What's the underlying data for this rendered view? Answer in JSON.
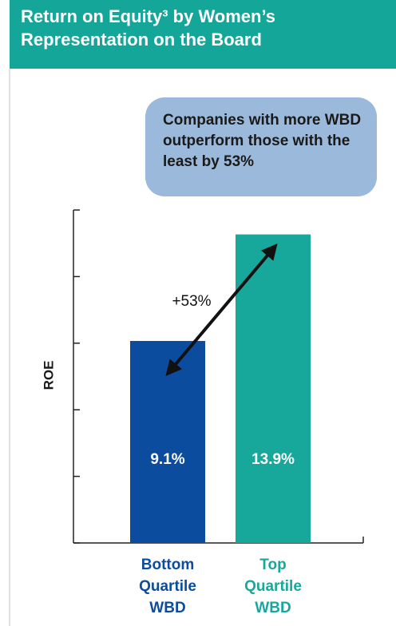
{
  "chart_data": {
    "type": "bar",
    "title": "Return on Equity³ by Women’s Representation on the Board",
    "annotation": "Companies with more WBD outperform those with the least by 53%",
    "arrow_label": "+53%",
    "y_label": "ROE",
    "categories": [
      "Bottom Quartile WBD",
      "Top Quartile WBD"
    ],
    "values": [
      9.1,
      13.9
    ],
    "value_labels": [
      "9.1%",
      "13.9%"
    ],
    "colors": [
      "#0b4c9e",
      "#17a89b"
    ],
    "ylim": [
      0,
      15
    ],
    "yticks": [
      0,
      3,
      6,
      9,
      12,
      15
    ],
    "grid": false
  }
}
